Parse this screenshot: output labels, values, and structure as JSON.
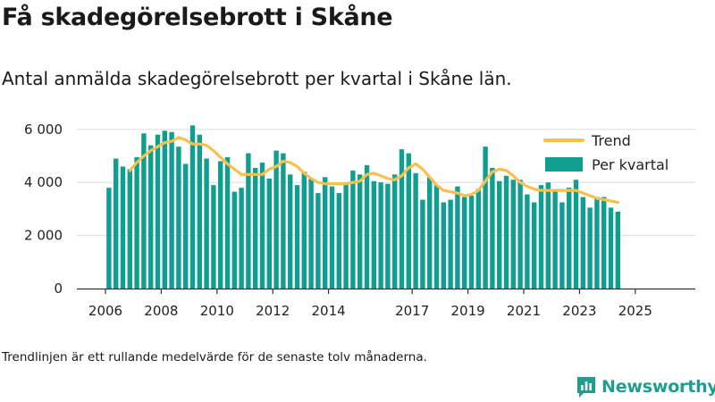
{
  "header": {
    "title": "Få skadegörelsebrott i Skåne",
    "subtitle": "Antal anmälda skadegörelsebrott per kvartal i Skåne län."
  },
  "footer": {
    "note": "Trendlinjen är ett rullande medelvärde för de senaste tolv månaderna.",
    "brand": "Newsworthy"
  },
  "colors": {
    "bars": "#109e91",
    "trend": "#f8c04e",
    "grid": "#dcdcdc",
    "axis": "#333333",
    "brand": "#1f9e8f"
  },
  "chart_data": {
    "type": "bar",
    "ylim": [
      0,
      6500
    ],
    "yticks": [
      0,
      2000,
      4000,
      6000
    ],
    "ytick_labels": [
      "0",
      "2 000",
      "4 000",
      "6 000"
    ],
    "xticks": [
      2006,
      2008,
      2010,
      2012,
      2014,
      2017,
      2019,
      2021,
      2023,
      2025
    ],
    "xtick_labels": [
      "2006",
      "2008",
      "2010",
      "2012",
      "2014",
      "2017",
      "2019",
      "2021",
      "2023",
      "2025"
    ],
    "x_start": "2006 Q1",
    "legend": {
      "position": "top-right",
      "entries": [
        "Trend",
        "Per kvartal"
      ]
    },
    "grid": true,
    "series": [
      {
        "name": "Per kvartal",
        "type": "bar",
        "values": [
          3800,
          4900,
          4600,
          4500,
          4950,
          5850,
          5400,
          5800,
          5950,
          5900,
          5350,
          4700,
          6150,
          5800,
          4900,
          3900,
          4800,
          4950,
          3650,
          3800,
          5100,
          4550,
          4750,
          4150,
          5200,
          5100,
          4300,
          3900,
          4400,
          4150,
          3600,
          4200,
          3850,
          3600,
          4000,
          4450,
          4300,
          4650,
          4050,
          4000,
          3950,
          4300,
          5250,
          5100,
          4350,
          3350,
          4200,
          3900,
          3250,
          3350,
          3850,
          3450,
          3500,
          3750,
          5350,
          4550,
          4050,
          4250,
          4100,
          4100,
          3550,
          3250,
          3900,
          4000,
          3700,
          3250,
          3800,
          4100,
          3450,
          3050,
          3450,
          3450,
          3050,
          2900
        ]
      },
      {
        "name": "Trend",
        "type": "line",
        "values": [
          null,
          null,
          null,
          4450,
          4750,
          5000,
          5200,
          5350,
          5500,
          5550,
          5700,
          5600,
          5450,
          5450,
          5400,
          5200,
          4950,
          4700,
          4500,
          4300,
          4300,
          4300,
          4300,
          4500,
          4600,
          4800,
          4750,
          4600,
          4350,
          4150,
          4000,
          3950,
          3950,
          3950,
          3950,
          4000,
          4050,
          4300,
          4350,
          4250,
          4150,
          4100,
          4250,
          4550,
          4700,
          4500,
          4200,
          3900,
          3700,
          3650,
          3600,
          3500,
          3550,
          3700,
          4050,
          4400,
          4500,
          4450,
          4250,
          4000,
          3850,
          3750,
          3700,
          3700,
          3700,
          3700,
          3700,
          3700,
          3600,
          3500,
          3400,
          3350,
          3300,
          3250
        ]
      }
    ]
  }
}
